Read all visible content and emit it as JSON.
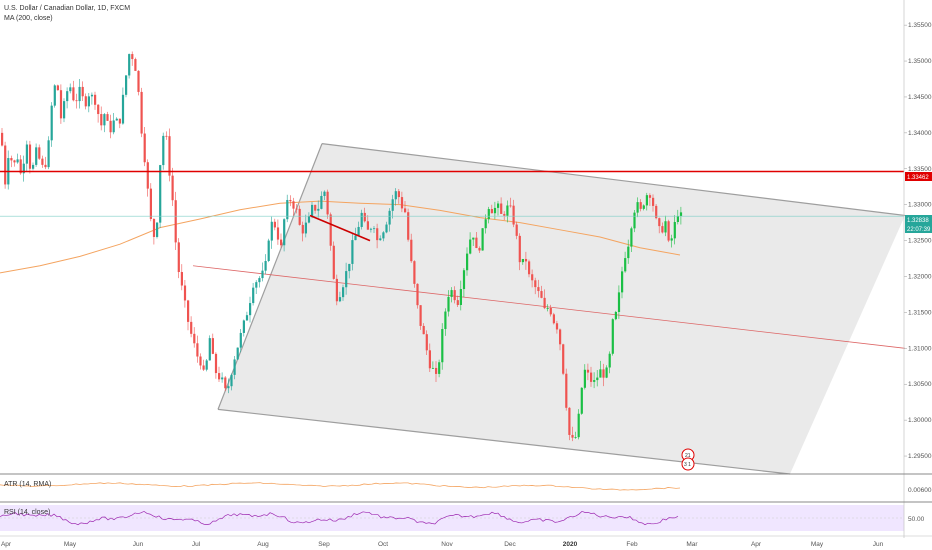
{
  "header": {
    "title": "U.S. Dollar / Canadian Dollar, 1D, FXCM",
    "ma_label": "MA (200, close)"
  },
  "pane_labels": {
    "atr": "ATR (14, RMA)",
    "rsi": "RSI (14, close)"
  },
  "price_badges": {
    "level": "1.33462",
    "last": "1.32838",
    "countdown": "22:07:39"
  },
  "colors": {
    "up": "#26a69a",
    "up_bright": "#1bbf45",
    "down": "#ef5350",
    "resistance": "#e00000",
    "ma": "#f4a460",
    "channel": "#9e9e9e",
    "rsi_band": "#f0e6ff",
    "rsi_line": "#9c27b0"
  },
  "chart_data": {
    "type": "candlestick",
    "symbol": "USD/CAD",
    "timeframe": "1D",
    "y_ticks": [
      "1.35500",
      "1.35000",
      "1.34500",
      "1.34000",
      "1.33500",
      "1.33000",
      "1.32500",
      "1.32000",
      "1.31500",
      "1.31000",
      "1.30500",
      "1.30000",
      "1.29500"
    ],
    "ylim": [
      1.2925,
      1.3585
    ],
    "x_ticks": [
      "Apr",
      "May",
      "Jun",
      "Jul",
      "Aug",
      "Sep",
      "Oct",
      "Nov",
      "Dec",
      "2020",
      "Feb",
      "Mar",
      "Apr",
      "May",
      "Jun"
    ],
    "close_path": [
      [
        0,
        1.34
      ],
      [
        4,
        1.333
      ],
      [
        8,
        1.338
      ],
      [
        12,
        1.335
      ],
      [
        16,
        1.337
      ],
      [
        20,
        1.334
      ],
      [
        26,
        1.339
      ],
      [
        30,
        1.334
      ],
      [
        36,
        1.338
      ],
      [
        40,
        1.335
      ],
      [
        46,
        1.336
      ],
      [
        52,
        1.346
      ],
      [
        56,
        1.347
      ],
      [
        60,
        1.342
      ],
      [
        64,
        1.3445
      ],
      [
        68,
        1.347
      ],
      [
        74,
        1.344
      ],
      [
        78,
        1.346
      ],
      [
        84,
        1.344
      ],
      [
        88,
        1.3455
      ],
      [
        94,
        1.3445
      ],
      [
        100,
        1.341
      ],
      [
        104,
        1.343
      ],
      [
        108,
        1.34
      ],
      [
        114,
        1.342
      ],
      [
        118,
        1.341
      ],
      [
        124,
        1.347
      ],
      [
        128,
        1.351
      ],
      [
        132,
        1.3505
      ],
      [
        136,
        1.348
      ],
      [
        140,
        1.341
      ],
      [
        144,
        1.336
      ],
      [
        148,
        1.33
      ],
      [
        152,
        1.325
      ],
      [
        156,
        1.328
      ],
      [
        160,
        1.338
      ],
      [
        164,
        1.341
      ],
      [
        168,
        1.335
      ],
      [
        172,
        1.33
      ],
      [
        176,
        1.322
      ],
      [
        180,
        1.319
      ],
      [
        184,
        1.316
      ],
      [
        188,
        1.313
      ],
      [
        192,
        1.311
      ],
      [
        196,
        1.309
      ],
      [
        200,
        1.308
      ],
      [
        204,
        1.3055
      ],
      [
        208,
        1.312
      ],
      [
        212,
        1.3085
      ],
      [
        216,
        1.306
      ],
      [
        220,
        1.306
      ],
      [
        224,
        1.304
      ],
      [
        228,
        1.305
      ],
      [
        232,
        1.308
      ],
      [
        236,
        1.31
      ],
      [
        240,
        1.312
      ],
      [
        244,
        1.314
      ],
      [
        248,
        1.316
      ],
      [
        252,
        1.319
      ],
      [
        256,
        1.3195
      ],
      [
        260,
        1.32
      ],
      [
        264,
        1.321
      ],
      [
        268,
        1.326
      ],
      [
        272,
        1.328
      ],
      [
        276,
        1.326
      ],
      [
        280,
        1.324
      ],
      [
        284,
        1.329
      ],
      [
        288,
        1.331
      ],
      [
        292,
        1.33
      ],
      [
        296,
        1.329
      ],
      [
        300,
        1.326
      ],
      [
        304,
        1.327
      ],
      [
        308,
        1.328
      ],
      [
        312,
        1.33
      ],
      [
        316,
        1.329
      ],
      [
        320,
        1.331
      ],
      [
        324,
        1.332
      ],
      [
        328,
        1.327
      ],
      [
        332,
        1.32
      ],
      [
        336,
        1.317
      ],
      [
        340,
        1.318
      ],
      [
        344,
        1.32
      ],
      [
        348,
        1.322
      ],
      [
        352,
        1.325
      ],
      [
        356,
        1.326
      ],
      [
        360,
        1.329
      ],
      [
        364,
        1.327
      ],
      [
        368,
        1.326
      ],
      [
        372,
        1.328
      ],
      [
        376,
        1.325
      ],
      [
        380,
        1.326
      ],
      [
        384,
        1.327
      ],
      [
        388,
        1.329
      ],
      [
        392,
        1.331
      ],
      [
        396,
        1.332
      ],
      [
        400,
        1.33
      ],
      [
        404,
        1.329
      ],
      [
        408,
        1.324
      ],
      [
        412,
        1.32
      ],
      [
        416,
        1.316
      ],
      [
        420,
        1.313
      ],
      [
        424,
        1.311
      ],
      [
        428,
        1.308
      ],
      [
        432,
        1.307
      ],
      [
        436,
        1.3055
      ],
      [
        440,
        1.311
      ],
      [
        444,
        1.315
      ],
      [
        448,
        1.318
      ],
      [
        452,
        1.318
      ],
      [
        456,
        1.316
      ],
      [
        460,
        1.319
      ],
      [
        464,
        1.322
      ],
      [
        468,
        1.325
      ],
      [
        472,
        1.326
      ],
      [
        476,
        1.323
      ],
      [
        480,
        1.325
      ],
      [
        484,
        1.328
      ],
      [
        488,
        1.33
      ],
      [
        492,
        1.329
      ],
      [
        496,
        1.33
      ],
      [
        500,
        1.3285
      ],
      [
        504,
        1.329
      ],
      [
        508,
        1.33
      ],
      [
        512,
        1.328
      ],
      [
        516,
        1.325
      ],
      [
        520,
        1.321
      ],
      [
        524,
        1.323
      ],
      [
        528,
        1.32
      ],
      [
        532,
        1.319
      ],
      [
        536,
        1.318
      ],
      [
        540,
        1.317
      ],
      [
        544,
        1.315
      ],
      [
        548,
        1.316
      ],
      [
        552,
        1.314
      ],
      [
        556,
        1.313
      ],
      [
        560,
        1.31
      ],
      [
        564,
        1.304
      ],
      [
        568,
        1.298
      ],
      [
        572,
        1.297
      ],
      [
        576,
        1.298
      ],
      [
        580,
        1.304
      ],
      [
        584,
        1.307
      ],
      [
        588,
        1.306
      ],
      [
        592,
        1.305
      ],
      [
        596,
        1.306
      ],
      [
        600,
        1.307
      ],
      [
        604,
        1.306
      ],
      [
        608,
        1.308
      ],
      [
        612,
        1.314
      ],
      [
        616,
        1.315
      ],
      [
        620,
        1.32
      ],
      [
        624,
        1.323
      ],
      [
        628,
        1.325
      ],
      [
        632,
        1.329
      ],
      [
        636,
        1.33
      ],
      [
        640,
        1.329
      ],
      [
        644,
        1.331
      ],
      [
        648,
        1.332
      ],
      [
        652,
        1.33
      ],
      [
        656,
        1.327
      ],
      [
        660,
        1.326
      ],
      [
        664,
        1.328
      ],
      [
        668,
        1.324
      ],
      [
        672,
        1.326
      ],
      [
        676,
        1.329
      ],
      [
        680,
        1.3284
      ]
    ],
    "ma200": [
      [
        0,
        1.3205
      ],
      [
        40,
        1.3215
      ],
      [
        80,
        1.3228
      ],
      [
        120,
        1.3245
      ],
      [
        160,
        1.3268
      ],
      [
        200,
        1.328
      ],
      [
        240,
        1.3293
      ],
      [
        280,
        1.3302
      ],
      [
        320,
        1.3305
      ],
      [
        360,
        1.3302
      ],
      [
        400,
        1.33
      ],
      [
        440,
        1.3292
      ],
      [
        480,
        1.3282
      ],
      [
        520,
        1.3275
      ],
      [
        560,
        1.3265
      ],
      [
        600,
        1.3255
      ],
      [
        640,
        1.324
      ],
      [
        660,
        1.3235
      ],
      [
        680,
        1.323
      ]
    ],
    "resistance_level": 1.33462,
    "channel": {
      "upper": [
        [
          322,
          1.3385
        ],
        [
          905,
          1.3285
        ]
      ],
      "lower": [
        [
          218,
          1.3015
        ],
        [
          790,
          1.2925
        ]
      ],
      "left_edge": [
        [
          218,
          1.3015
        ],
        [
          322,
          1.3385
        ]
      ],
      "median": [
        [
          193,
          1.3215
        ],
        [
          905,
          1.31
        ]
      ]
    },
    "trend_segment": [
      [
        310,
        1.3285
      ],
      [
        370,
        1.325
      ]
    ],
    "markers": [
      "21",
      "3 1"
    ],
    "atr_y_tick": "0.00600",
    "rsi_y_tick": "50.00"
  }
}
